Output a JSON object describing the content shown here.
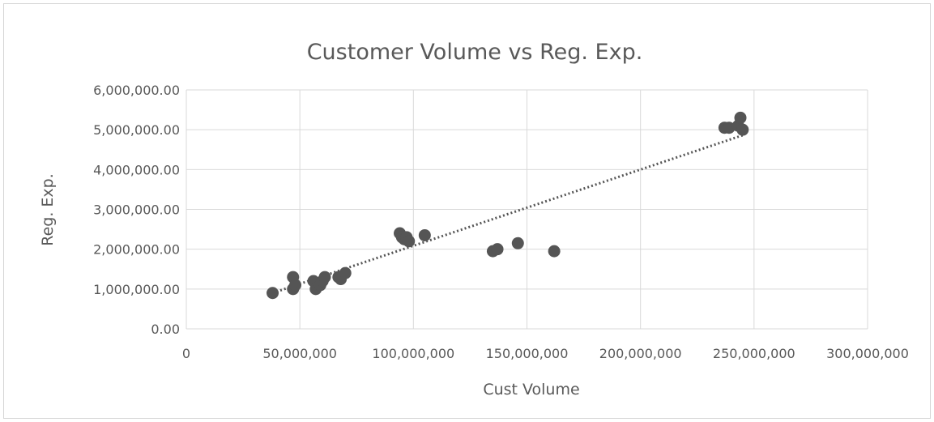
{
  "chart_data": {
    "type": "scatter",
    "title": "Customer Volume vs Reg. Exp.",
    "xlabel": "Cust Volume",
    "ylabel": "Reg. Exp.",
    "xlim": [
      0,
      300000000
    ],
    "ylim": [
      0,
      6000000
    ],
    "x_ticks": [
      0,
      50000000,
      100000000,
      150000000,
      200000000,
      250000000,
      300000000
    ],
    "y_ticks": [
      0,
      1000000,
      2000000,
      3000000,
      4000000,
      5000000,
      6000000
    ],
    "x_tick_labels": [
      "0",
      "50,000,000",
      "100,000,000",
      "150,000,000",
      "200,000,000",
      "250,000,000",
      "300,000,000"
    ],
    "y_tick_labels": [
      "0.00",
      "1,000,000.00",
      "2,000,000.00",
      "3,000,000.00",
      "4,000,000.00",
      "5,000,000.00",
      "6,000,000.00"
    ],
    "grid": true,
    "legend": "none",
    "trendline": {
      "type": "linear",
      "style": "dotted",
      "from": [
        38000000,
        900000
      ],
      "to": [
        246000000,
        4880000
      ]
    },
    "series": [
      {
        "x": [
          38000000,
          47000000,
          47000000,
          48000000,
          56000000,
          57000000,
          59000000,
          60000000,
          61000000,
          67000000,
          68000000,
          70000000,
          94000000,
          95000000,
          96000000,
          97000000,
          98000000,
          105000000,
          135000000,
          137000000,
          146000000,
          162000000,
          237000000,
          239000000,
          243000000,
          244000000,
          245000000
        ],
        "y": [
          900000,
          1000000,
          1300000,
          1100000,
          1200000,
          1000000,
          1100000,
          1200000,
          1300000,
          1300000,
          1250000,
          1400000,
          2400000,
          2300000,
          2250000,
          2300000,
          2200000,
          2350000,
          1950000,
          2000000,
          2150000,
          1950000,
          5050000,
          5050000,
          5100000,
          5300000,
          5000000
        ]
      }
    ]
  }
}
